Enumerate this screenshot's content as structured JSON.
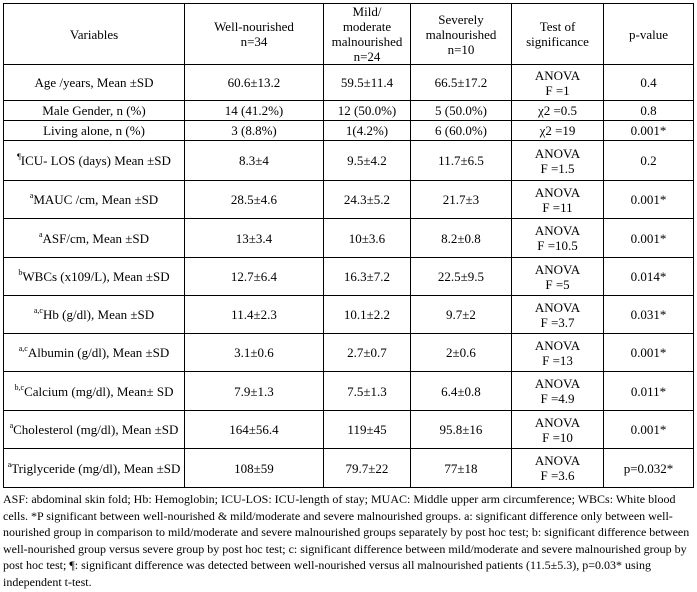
{
  "table": {
    "header": [
      [
        "Variables"
      ],
      [
        "Well-nourished",
        "n=34"
      ],
      [
        "Mild/ moderate",
        "malnourished",
        "n=24"
      ],
      [
        "Severely",
        "malnourished",
        "n=10"
      ],
      [
        "Test of",
        "significance"
      ],
      [
        "p-value"
      ]
    ],
    "rows": [
      {
        "variable": "Age /years, Mean ±SD",
        "well": "60.6±13.2",
        "mild": "59.5±11.4",
        "severe": "66.5±17.2",
        "test": [
          "ANOVA",
          "F =1"
        ],
        "p": "0.4"
      },
      {
        "variable": "Male Gender, n (%)",
        "well": "14 (41.2%)",
        "mild": "12 (50.0%)",
        "severe": "5 (50.0%)",
        "test": [
          "χ2 =0.5"
        ],
        "p": "0.8"
      },
      {
        "variable": "Living alone, n (%)",
        "well": "3 (8.8%)",
        "mild": "1(4.2%)",
        "severe": "6 (60.0%)",
        "test": [
          "χ2 =19"
        ],
        "p": "0.001*"
      },
      {
        "sup": "¶",
        "variable": "ICU- LOS (days) Mean ±SD",
        "well": "8.3±4",
        "mild": "9.5±4.2",
        "severe": "11.7±6.5",
        "test": [
          "ANOVA",
          "F =1.5"
        ],
        "p": "0.2"
      },
      {
        "sup": "a",
        "variable": "MAUC /cm, Mean ±SD",
        "well": "28.5±4.6",
        "mild": "24.3±5.2",
        "severe": "21.7±3",
        "test": [
          "ANOVA",
          "F =11"
        ],
        "p": "0.001*"
      },
      {
        "sup": "a",
        "variable": "ASF/cm, Mean ±SD",
        "well": "13±3.4",
        "mild": "10±3.6",
        "severe": "8.2±0.8",
        "test": [
          "ANOVA",
          "F =10.5"
        ],
        "p": "0.001*"
      },
      {
        "sup": "b",
        "variable": "WBCs (x109/L), Mean ±SD",
        "well": "12.7±6.4",
        "mild": "16.3±7.2",
        "severe": "22.5±9.5",
        "test": [
          "ANOVA",
          "F =5"
        ],
        "p": "0.014*"
      },
      {
        "sup": "a,c",
        "variable": "Hb (g/dl), Mean ±SD",
        "well": "11.4±2.3",
        "mild": "10.1±2.2",
        "severe": "9.7±2",
        "test": [
          "ANOVA",
          "F =3.7"
        ],
        "p": "0.031*"
      },
      {
        "sup": "a,c",
        "variable": "Albumin (g/dl), Mean ±SD",
        "well": "3.1±0.6",
        "mild": "2.7±0.7",
        "severe": "2±0.6",
        "test": [
          "ANOVA",
          "F =13"
        ],
        "p": "0.001*"
      },
      {
        "sup": "b,c",
        "variable": "Calcium (mg/dl), Mean± SD",
        "well": "7.9±1.3",
        "mild": "7.5±1.3",
        "severe": "6.4±0.8",
        "test": [
          "ANOVA",
          "F =4.9"
        ],
        "p": "0.011*"
      },
      {
        "sup": "a",
        "variable": "Cholesterol (mg/dl), Mean ±SD",
        "well": "164±56.4",
        "mild": "119±45",
        "severe": "95.8±16",
        "test": [
          "ANOVA",
          "F =10"
        ],
        "p": "0.001*"
      },
      {
        "sup": "a",
        "variable": "Triglyceride (mg/dl), Mean ±SD",
        "well": "108±59",
        "mild": "79.7±22",
        "severe": "77±18",
        "test": [
          "ANOVA",
          "F =3.6"
        ],
        "p": "p=0.032*"
      }
    ]
  },
  "footnote": "ASF: abdominal skin fold; Hb: Hemoglobin; ICU-LOS: ICU-length of stay; MUAC: Middle upper arm circumference; WBCs: White blood cells. *P significant between well-nourished & mild/moderate and severe malnourished groups. a: significant difference only between well-nourished group in comparison to mild/moderate and severe malnourished groups separately by post hoc test; b: significant difference between well-nourished group versus severe group by post hoc test; c: significant difference between mild/moderate and severe malnourished group by post hoc test; ¶: significant difference was detected between well-nourished versus all malnourished patients (11.5±5.3), p=0.03* using independent t-test."
}
